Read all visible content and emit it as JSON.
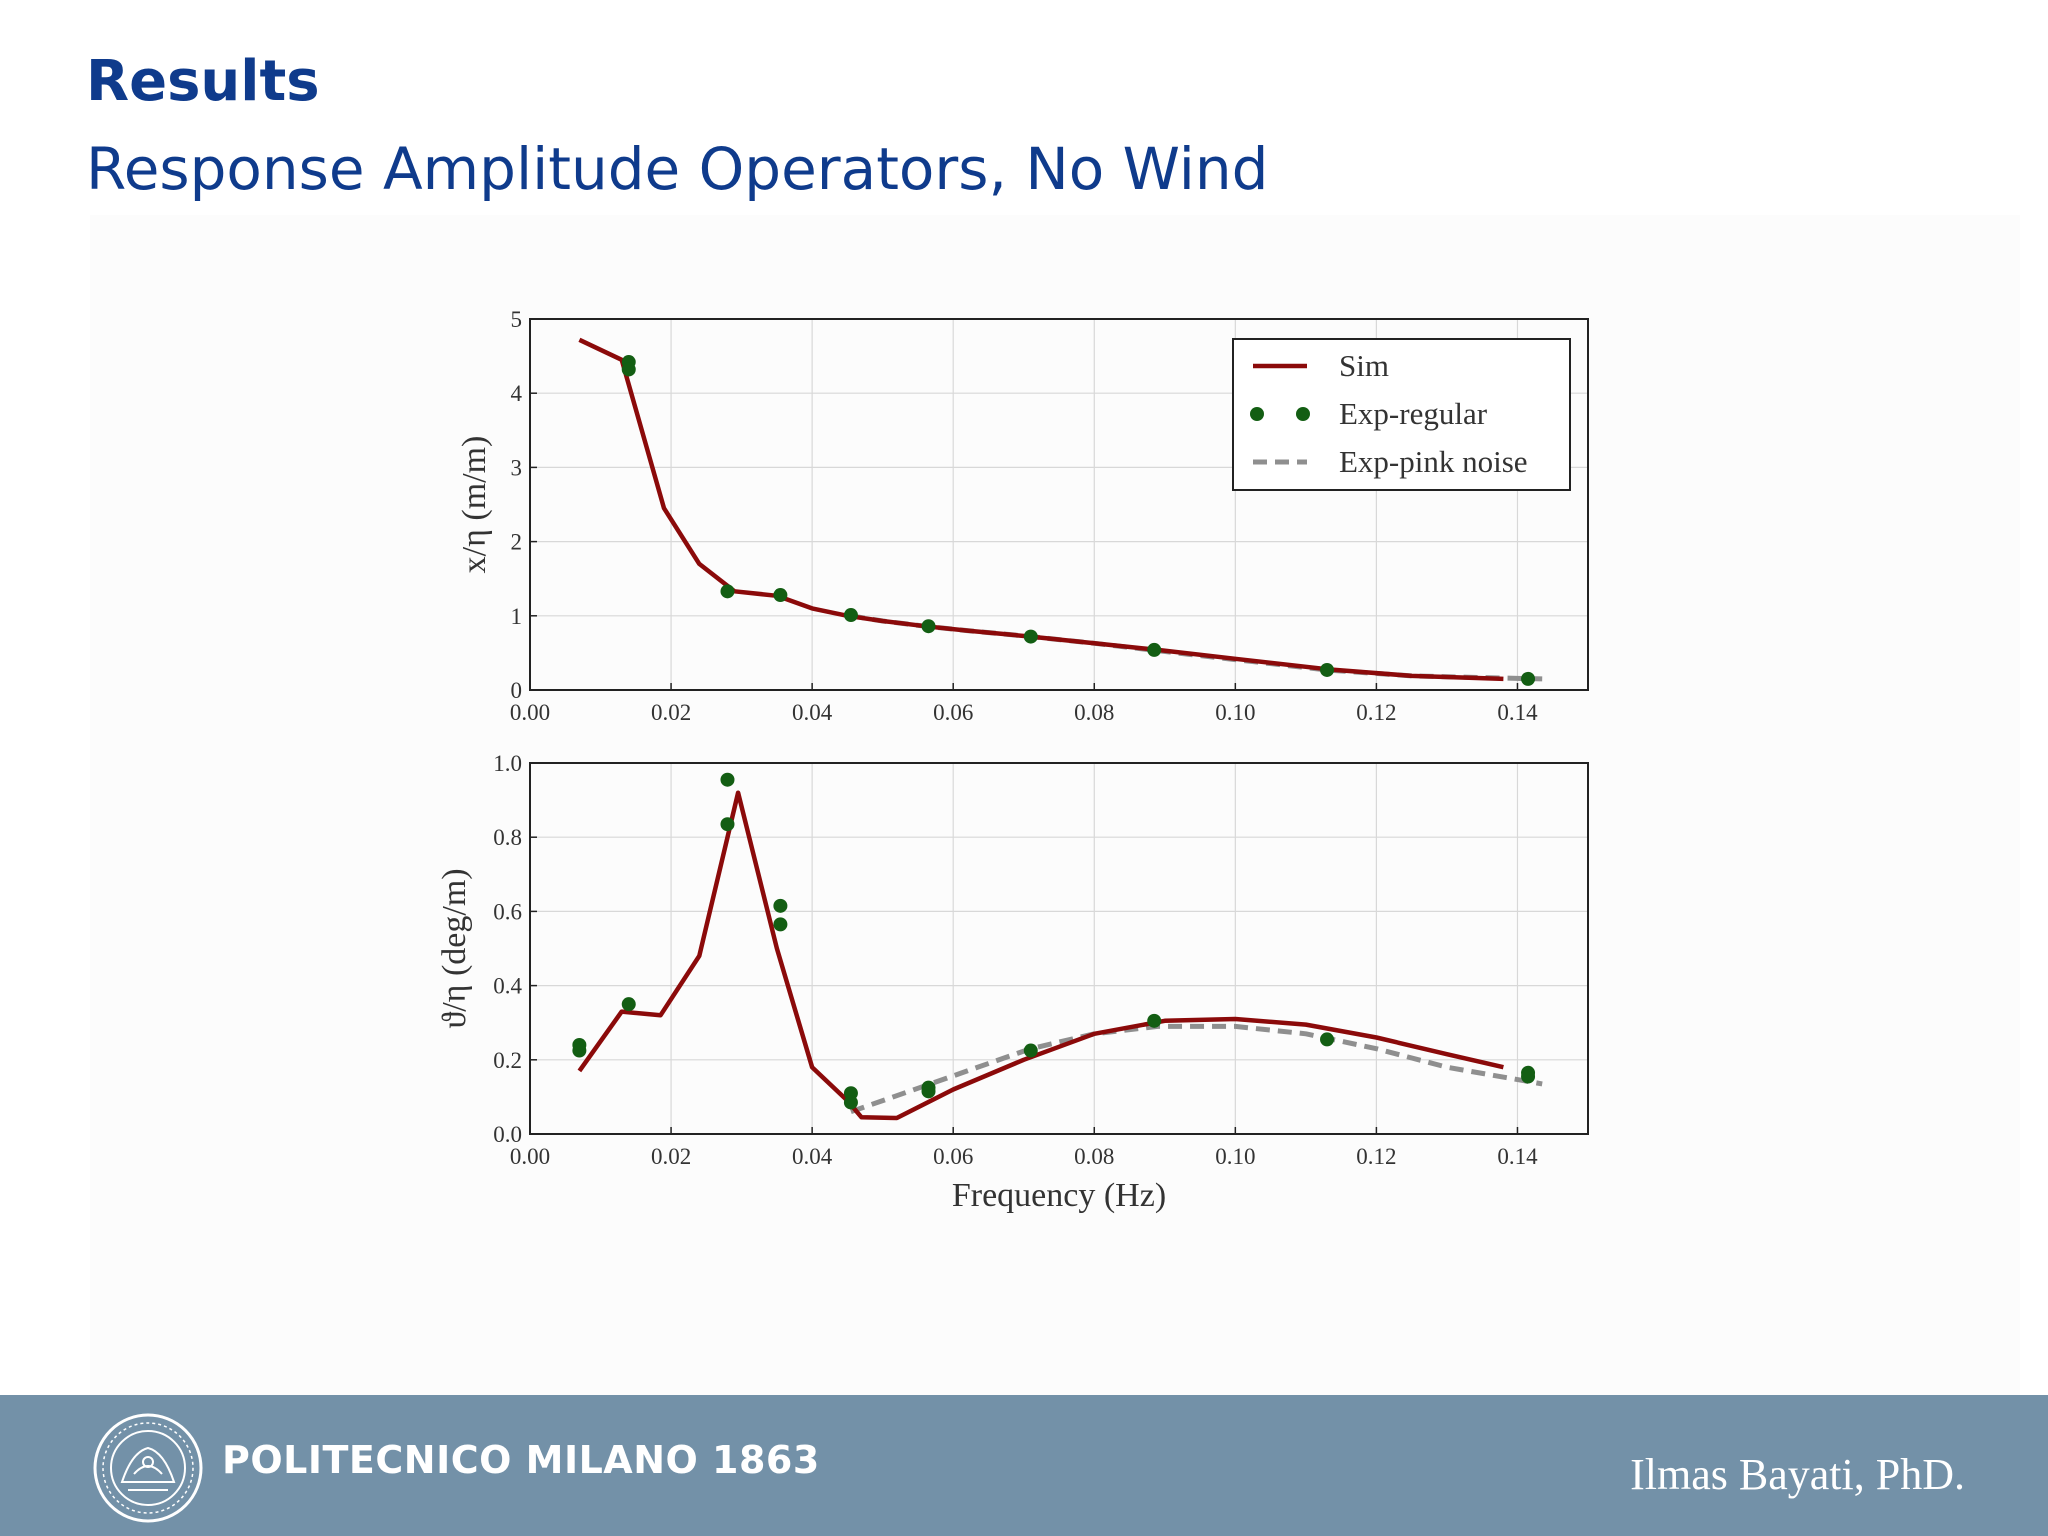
{
  "slide": {
    "title": "Results",
    "subtitle": "Response Amplitude Operators, No Wind"
  },
  "footer": {
    "institution": "POLITECNICO MILANO 1863",
    "author": "Ilmas Bayati, PhD."
  },
  "colors": {
    "title": "#0f3b8c",
    "footer_bg": "#7391a8",
    "sim": "#8b0a0a",
    "exp_regular": "#135e13",
    "exp_pink": "#8f8f8f"
  },
  "chart_data": [
    {
      "type": "line",
      "ylabel": "x/η (m/m)",
      "xlabel": "",
      "xlim": [
        0,
        0.15
      ],
      "ylim": [
        0,
        5
      ],
      "xticks": [
        "0.00",
        "0.02",
        "0.04",
        "0.06",
        "0.08",
        "0.10",
        "0.12",
        "0.14"
      ],
      "yticks": [
        "0",
        "1",
        "2",
        "3",
        "4",
        "5"
      ],
      "grid": true,
      "legend": {
        "placement": "top-right",
        "entries": [
          "Sim",
          "Exp-regular",
          "Exp-pink noise"
        ]
      },
      "series": [
        {
          "name": "Sim",
          "style": "line",
          "x": [
            0.007,
            0.013,
            0.019,
            0.024,
            0.029,
            0.035,
            0.04,
            0.045,
            0.05,
            0.056,
            0.062,
            0.071,
            0.08,
            0.089,
            0.1,
            0.113,
            0.125,
            0.138
          ],
          "y": [
            4.72,
            4.45,
            2.45,
            1.7,
            1.33,
            1.27,
            1.1,
            1.0,
            0.93,
            0.86,
            0.8,
            0.72,
            0.63,
            0.54,
            0.42,
            0.28,
            0.19,
            0.15
          ]
        },
        {
          "name": "Exp-regular",
          "style": "markers",
          "x": [
            0.014,
            0.014,
            0.028,
            0.0355,
            0.0455,
            0.0565,
            0.071,
            0.0885,
            0.113,
            0.1415
          ],
          "y": [
            4.42,
            4.32,
            1.33,
            1.28,
            1.01,
            0.86,
            0.72,
            0.54,
            0.27,
            0.15
          ]
        },
        {
          "name": "Exp-pink noise",
          "style": "dashed",
          "x": [
            0.0455,
            0.05,
            0.056,
            0.062,
            0.071,
            0.08,
            0.089,
            0.1,
            0.113,
            0.125,
            0.138,
            0.1435
          ],
          "y": [
            1.0,
            0.93,
            0.86,
            0.8,
            0.72,
            0.63,
            0.53,
            0.41,
            0.27,
            0.19,
            0.16,
            0.15
          ]
        }
      ]
    },
    {
      "type": "line",
      "ylabel": "ϑ/η (deg/m)",
      "xlabel": "Frequency (Hz)",
      "xlim": [
        0,
        0.15
      ],
      "ylim": [
        0,
        1.0
      ],
      "xticks": [
        "0.00",
        "0.02",
        "0.04",
        "0.06",
        "0.08",
        "0.10",
        "0.12",
        "0.14"
      ],
      "yticks": [
        "0.0",
        "0.2",
        "0.4",
        "0.6",
        "0.8",
        "1.0"
      ],
      "grid": true,
      "series": [
        {
          "name": "Sim",
          "style": "line",
          "x": [
            0.007,
            0.013,
            0.0185,
            0.024,
            0.0295,
            0.035,
            0.04,
            0.045,
            0.047,
            0.052,
            0.06,
            0.07,
            0.08,
            0.09,
            0.1,
            0.11,
            0.12,
            0.13,
            0.138
          ],
          "y": [
            0.17,
            0.33,
            0.32,
            0.48,
            0.92,
            0.5,
            0.18,
            0.09,
            0.045,
            0.043,
            0.12,
            0.2,
            0.27,
            0.305,
            0.31,
            0.295,
            0.26,
            0.215,
            0.18
          ]
        },
        {
          "name": "Exp-regular",
          "style": "markers",
          "x": [
            0.007,
            0.007,
            0.014,
            0.028,
            0.028,
            0.0355,
            0.0355,
            0.0455,
            0.0455,
            0.0565,
            0.0565,
            0.071,
            0.0885,
            0.113,
            0.1415,
            0.1415
          ],
          "y": [
            0.24,
            0.225,
            0.35,
            0.955,
            0.835,
            0.615,
            0.565,
            0.11,
            0.085,
            0.125,
            0.115,
            0.225,
            0.305,
            0.255,
            0.165,
            0.155
          ]
        },
        {
          "name": "Exp-pink noise",
          "style": "dashed",
          "x": [
            0.0455,
            0.05,
            0.056,
            0.062,
            0.071,
            0.08,
            0.089,
            0.1,
            0.11,
            0.12,
            0.13,
            0.1435
          ],
          "y": [
            0.06,
            0.09,
            0.13,
            0.17,
            0.23,
            0.27,
            0.29,
            0.29,
            0.27,
            0.23,
            0.18,
            0.135
          ]
        }
      ]
    }
  ]
}
